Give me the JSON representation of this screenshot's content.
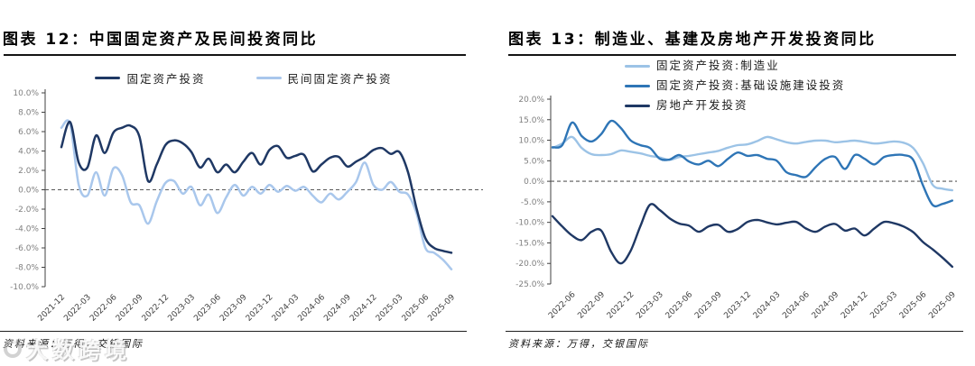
{
  "watermark": {
    "text": "大数跨境"
  },
  "chart_data": [
    {
      "type": "line",
      "figure_label": "图表 12",
      "title": "图表 12：中国固定资产及民间投资同比",
      "source": "资料来源：万得，交银国际",
      "x_start": "2021-12",
      "x_frequency": "monthly",
      "x_tick_labels": [
        "2021-12",
        "2022-03",
        "2022-06",
        "2022-09",
        "2022-12",
        "2023-03",
        "2023-06",
        "2023-09",
        "2023-12",
        "2024-03",
        "2024-06",
        "2024-09",
        "2024-12",
        "2025-03",
        "2025-06",
        "2025-09"
      ],
      "x_tick_first_index": 0,
      "x_tick_every": 3,
      "ylim": [
        -10,
        10
      ],
      "ytick_step": 2,
      "ytick_labels": [
        "10.0%",
        "8.0%",
        "6.0%",
        "4.0%",
        "2.0%",
        "0.0%",
        "-2.0%",
        "-4.0%",
        "-6.0%",
        "-8.0%",
        "-10.0%"
      ],
      "zero_line_dashed": true,
      "grid": false,
      "legend_layout": "horizontal-top-center",
      "series": [
        {
          "name": "固定资产投资",
          "color": "#1F3864",
          "z": 2,
          "values": [
            4.4,
            7.0,
            2.8,
            2.3,
            5.6,
            3.8,
            5.9,
            6.4,
            6.6,
            5.5,
            0.9,
            2.6,
            4.6,
            5.1,
            4.8,
            3.9,
            2.3,
            3.2,
            1.8,
            2.6,
            1.8,
            2.9,
            3.8,
            2.6,
            4.1,
            4.5,
            3.3,
            3.5,
            3.6,
            1.9,
            2.6,
            3.3,
            3.4,
            2.4,
            2.9,
            3.4,
            4.1,
            4.3,
            3.7,
            3.9,
            1.8,
            -2.0,
            -5.0,
            -6.0,
            -6.3,
            -6.5
          ]
        },
        {
          "name": "民间固定资产投资",
          "color": "#A9C7EC",
          "z": 1,
          "values": [
            6.4,
            6.8,
            0.5,
            -0.6,
            1.8,
            -0.6,
            2.2,
            1.5,
            -1.3,
            -1.6,
            -3.5,
            -1.2,
            0.7,
            0.9,
            -0.4,
            0.3,
            -1.6,
            -0.5,
            -2.4,
            -0.8,
            0.5,
            -0.6,
            0.3,
            -0.4,
            0.5,
            -0.2,
            0.4,
            -0.1,
            0.3,
            -0.6,
            -1.3,
            -0.4,
            -1.0,
            -0.2,
            0.8,
            2.8,
            0.5,
            0.0,
            0.8,
            -0.2,
            -0.5,
            -2.5,
            -6.0,
            -6.5,
            -7.2,
            -8.2
          ]
        }
      ]
    },
    {
      "type": "line",
      "figure_label": "图表 13",
      "title": "图表 13：制造业、基建及房地产开发投资同比",
      "source": "资料来源：万得，交银国际",
      "x_start": "2022-04",
      "x_frequency": "monthly",
      "x_tick_labels": [
        "2022-06",
        "2022-09",
        "2022-12",
        "2023-03",
        "2023-06",
        "2023-09",
        "2023-12",
        "2024-03",
        "2024-06",
        "2024-09",
        "2024-12",
        "2025-03",
        "2025-06",
        "2025-09"
      ],
      "x_tick_first_index": 2,
      "x_tick_every": 3,
      "ylim": [
        -25,
        20
      ],
      "ytick_step": 5,
      "ytick_labels": [
        "20.0%",
        "15.0%",
        "10.0%",
        "5.0%",
        "0.0%",
        "-5.0%",
        "-10.0%",
        "-15.0%",
        "-20.0%",
        "-25.0%"
      ],
      "zero_line_dashed": true,
      "grid": false,
      "legend_layout": "vertical-top-left",
      "series": [
        {
          "name": "固定资产投资:制造业",
          "color": "#9CC3E6",
          "z": 1,
          "values": [
            8.1,
            9.2,
            10.8,
            8.1,
            6.6,
            6.4,
            6.6,
            7.5,
            7.2,
            6.8,
            6.2,
            5.8,
            5.2,
            5.9,
            6.2,
            6.6,
            7.0,
            7.4,
            8.2,
            8.8,
            9.0,
            9.8,
            10.8,
            10.2,
            9.5,
            9.2,
            9.6,
            9.9,
            9.9,
            9.5,
            9.7,
            9.9,
            9.6,
            9.2,
            9.4,
            9.7,
            9.4,
            8.1,
            4.4,
            -0.9,
            -1.8,
            -2.2
          ]
        },
        {
          "name": "固定资产投资:基础设施建设投资",
          "color": "#2E75B6",
          "z": 2,
          "values": [
            8.3,
            8.8,
            14.3,
            11.0,
            9.7,
            11.5,
            14.7,
            13.0,
            10.0,
            8.8,
            8.1,
            5.5,
            5.3,
            6.4,
            4.8,
            4.1,
            5.0,
            3.7,
            5.5,
            7.0,
            6.2,
            6.4,
            5.5,
            5.0,
            2.2,
            1.5,
            1.1,
            3.5,
            5.5,
            5.9,
            3.0,
            6.4,
            5.5,
            4.1,
            5.9,
            6.4,
            6.4,
            5.2,
            -1.0,
            -5.8,
            -5.5,
            -4.7
          ]
        },
        {
          "name": "房地产开发投资",
          "color": "#1F3864",
          "z": 3,
          "values": [
            -8.5,
            -11.0,
            -13.2,
            -14.3,
            -12.3,
            -12.0,
            -17.1,
            -20.0,
            -17.0,
            -11.0,
            -5.7,
            -7.0,
            -9.0,
            -10.3,
            -10.8,
            -12.3,
            -11.0,
            -10.6,
            -12.3,
            -11.6,
            -9.9,
            -9.4,
            -10.0,
            -10.5,
            -10.1,
            -9.9,
            -11.5,
            -12.3,
            -11.0,
            -10.4,
            -12.0,
            -11.5,
            -13.2,
            -11.5,
            -9.9,
            -10.2,
            -11.0,
            -12.4,
            -14.8,
            -16.6,
            -18.6,
            -20.8
          ]
        }
      ]
    }
  ]
}
